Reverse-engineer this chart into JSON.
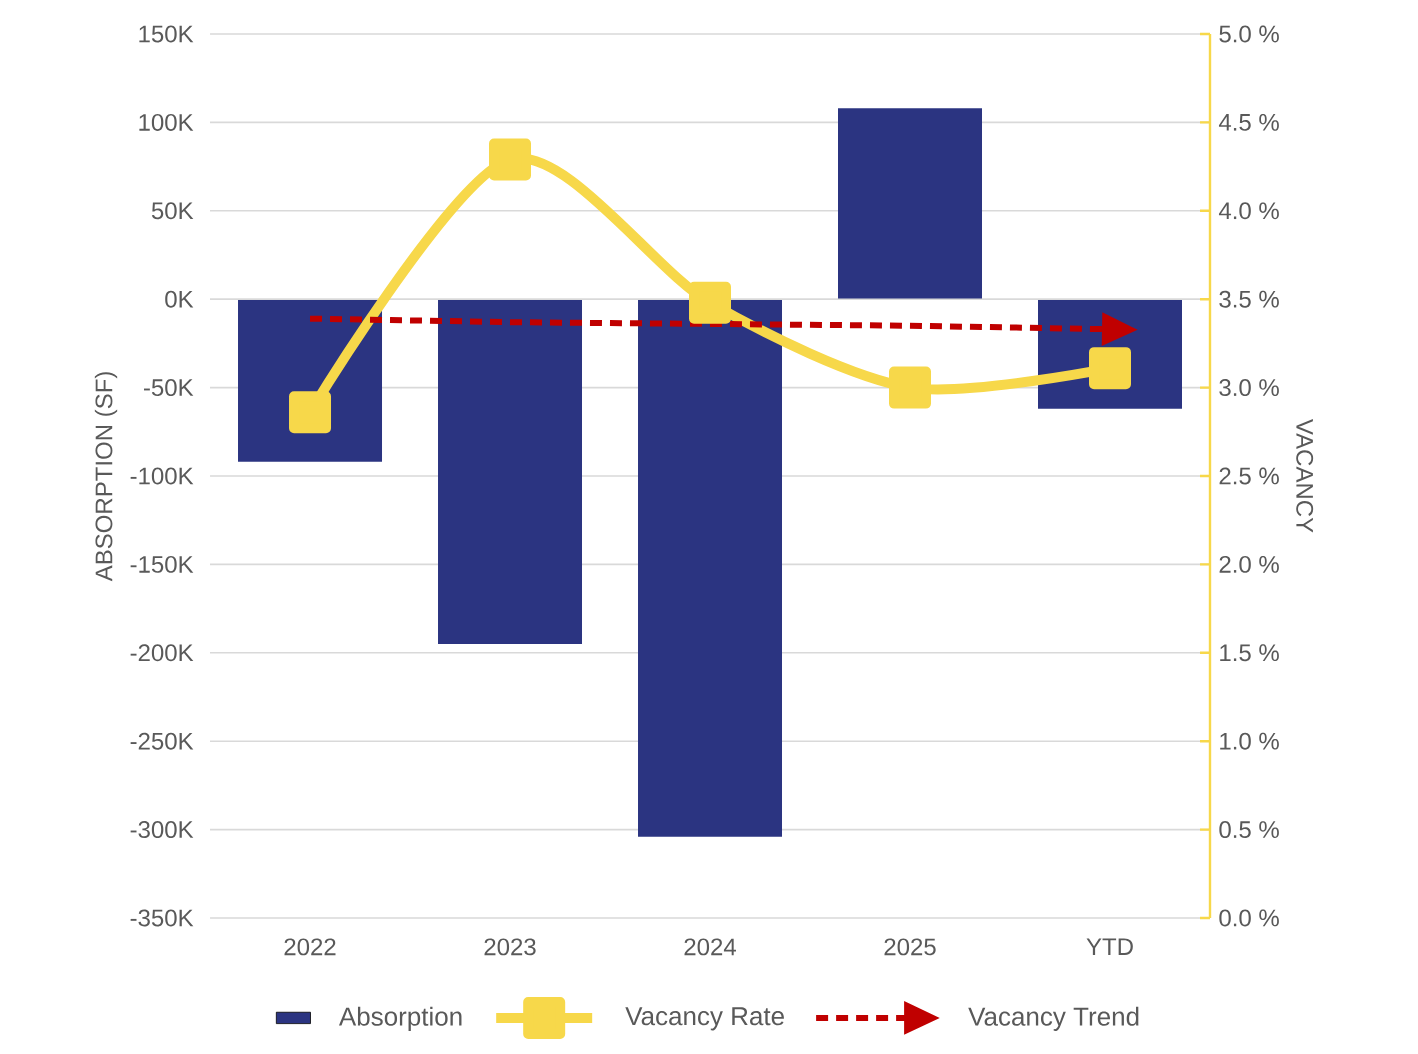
{
  "chart_data": {
    "type": "bar",
    "categories": [
      "2022",
      "2023",
      "2024",
      "2025",
      "YTD"
    ],
    "ylabel": "ABSORPTION (SF)",
    "y2label": "VACANCY",
    "ylim": [
      -350000,
      150000
    ],
    "yticks": [
      {
        "value": -350000,
        "label": "-350K"
      },
      {
        "value": -300000,
        "label": "-300K"
      },
      {
        "value": -250000,
        "label": "-250K"
      },
      {
        "value": -200000,
        "label": "-200K"
      },
      {
        "value": -150000,
        "label": "-150K"
      },
      {
        "value": -100000,
        "label": "-100K"
      },
      {
        "value": -50000,
        "label": "-50K"
      },
      {
        "value": 0,
        "label": "0K"
      },
      {
        "value": 50000,
        "label": "50K"
      },
      {
        "value": 100000,
        "label": "100K"
      },
      {
        "value": 150000,
        "label": "150K"
      }
    ],
    "y2lim": [
      0,
      5
    ],
    "y2ticks": [
      {
        "value": 0,
        "label": "0.0 %"
      },
      {
        "value": 0.5,
        "label": "0.5 %"
      },
      {
        "value": 1,
        "label": "1.0 %"
      },
      {
        "value": 1.5,
        "label": "1.5 %"
      },
      {
        "value": 2,
        "label": "2.0 %"
      },
      {
        "value": 2.5,
        "label": "2.5 %"
      },
      {
        "value": 3,
        "label": "3.0 %"
      },
      {
        "value": 3.5,
        "label": "3.5 %"
      },
      {
        "value": 4,
        "label": "4.0 %"
      },
      {
        "value": 4.5,
        "label": "4.5 %"
      },
      {
        "value": 5,
        "label": "5.0 %"
      }
    ],
    "grid": "y",
    "legend": "bottom",
    "series": [
      {
        "name": "Absorption",
        "color": "#2b3481",
        "values": [
          -92000,
          -195000,
          -304000,
          108000,
          -62000
        ]
      },
      {
        "name": "Vacancy Rate",
        "type": "line",
        "axis": "y2",
        "color": "#f7d84a",
        "marker": "square",
        "values": [
          2.86,
          4.29,
          3.48,
          3.0,
          3.11
        ]
      },
      {
        "name": "Vacancy Trend",
        "type": "line",
        "axis": "y2",
        "color": "#c00000",
        "line_style": "dashed",
        "marker": "none",
        "values": [
          3.39,
          3.37,
          3.36,
          3.35,
          3.33
        ]
      }
    ]
  }
}
